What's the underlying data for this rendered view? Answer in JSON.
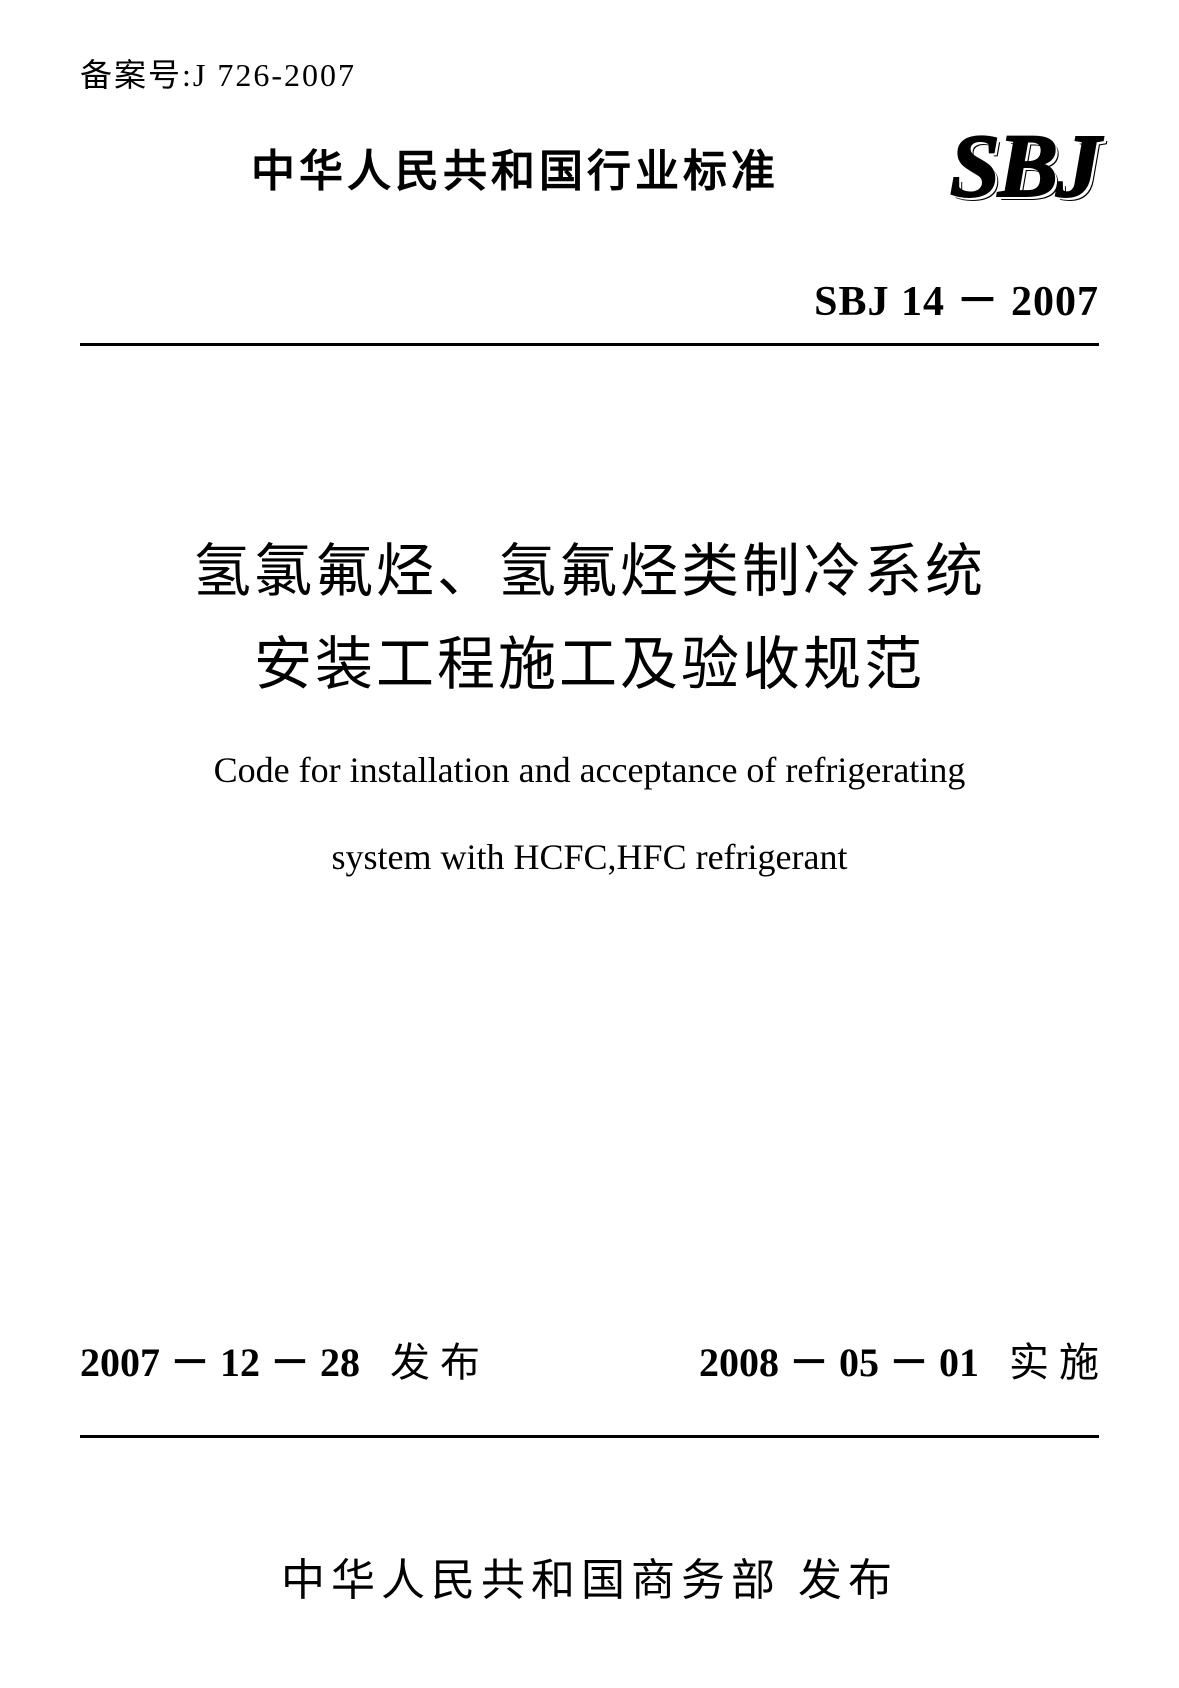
{
  "filing_number": "备案号:J 726-2007",
  "country_standard": "中华人民共和国行业标准",
  "logo_text": "SBJ",
  "standard_code": "SBJ 14 － 2007",
  "title_cn_line1": "氢氯氟烃、氢氟烃类制冷系统",
  "title_cn_line2": "安装工程施工及验收规范",
  "title_en_line1": "Code for installation and acceptance of refrigerating",
  "title_en_line2": "system with HCFC,HFC refrigerant",
  "issue_date": "2007 － 12 － 28",
  "issue_label": "发 布",
  "effective_date": "2008 － 05 － 01",
  "effective_label": "实 施",
  "publisher": "中华人民共和国商务部 发布",
  "colors": {
    "text": "#000000",
    "background": "#ffffff"
  },
  "typography": {
    "filing_fontsize": 32,
    "country_standard_fontsize": 44,
    "logo_fontsize": 90,
    "standard_code_fontsize": 42,
    "title_cn_fontsize": 58,
    "title_en_fontsize": 36,
    "date_fontsize": 40,
    "publisher_fontsize": 44
  }
}
